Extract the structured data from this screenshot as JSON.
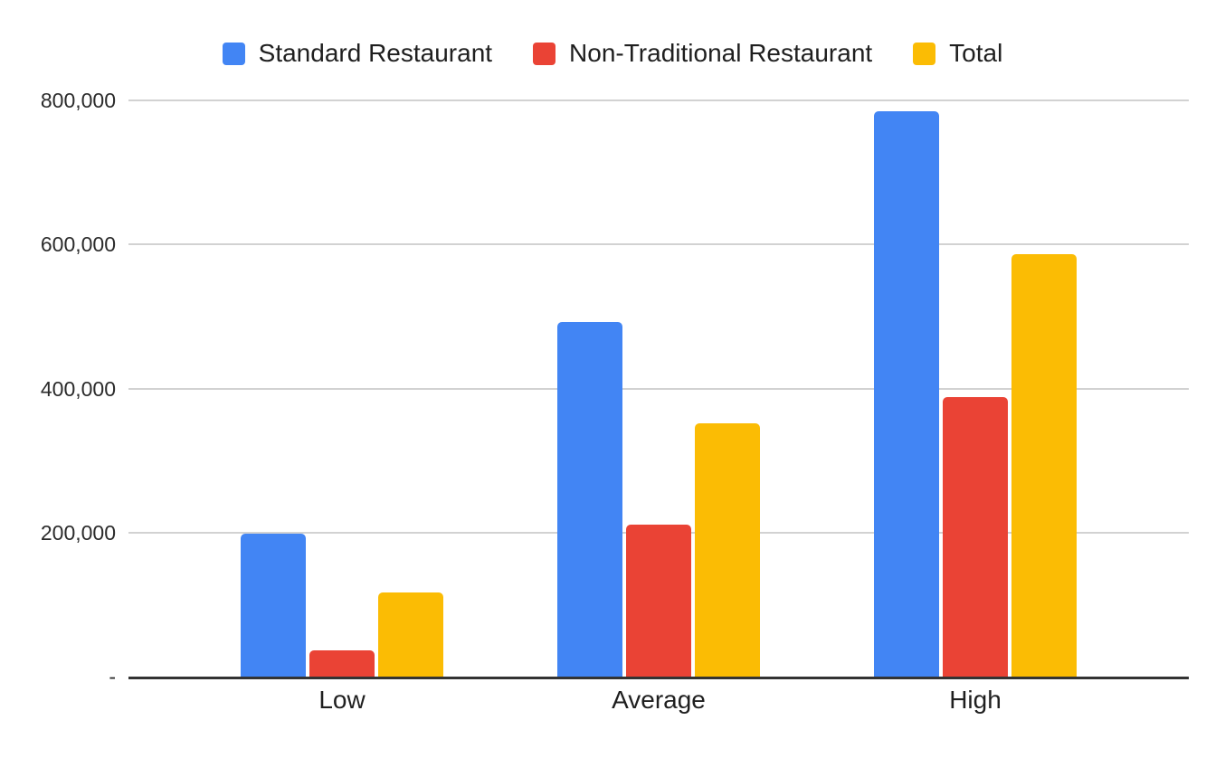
{
  "chart_data": {
    "type": "bar",
    "title": "",
    "categories": [
      "Low",
      "Average",
      "High"
    ],
    "series": [
      {
        "name": "Standard Restaurant",
        "color": "#4285F4",
        "values": [
          198000,
          492000,
          785000
        ]
      },
      {
        "name": "Non-Traditional Restaurant",
        "color": "#EA4335",
        "values": [
          36000,
          211000,
          388000
        ]
      },
      {
        "name": "Total",
        "color": "#FBBC04",
        "values": [
          117000,
          351500,
          586500
        ]
      }
    ],
    "ylim": [
      0,
      800000
    ],
    "yticks": [
      {
        "label": "800,000",
        "value": 800000
      },
      {
        "label": "600,000",
        "value": 600000
      },
      {
        "label": "400,000",
        "value": 400000
      },
      {
        "label": "200,000",
        "value": 200000
      },
      {
        "label": "-",
        "value": 0
      }
    ],
    "xlabel": "",
    "ylabel": "",
    "grid": "horizontal",
    "legend_position": "top-center",
    "colors": {
      "axis_line": "#333333",
      "gridline": "#d2d2d2",
      "text": "#1f1f1f"
    }
  }
}
